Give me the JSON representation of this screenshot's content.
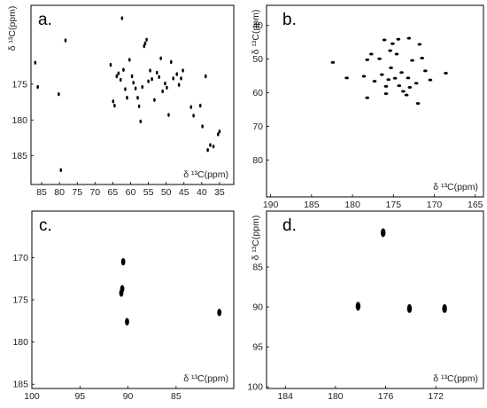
{
  "panels": [
    {
      "id": "a",
      "label": "a.",
      "x_ticks": [
        "85",
        "80",
        "75",
        "70",
        "65",
        "60",
        "55",
        "50",
        "45",
        "40",
        "35"
      ],
      "y_ticks": [
        "175",
        "180",
        "185"
      ],
      "x_axis_label": "δ ¹³C(ppm)",
      "y_axis_label": "δ ¹³C(ppm)",
      "x_range": [
        88,
        31
      ],
      "y_range": [
        164,
        189
      ],
      "peaks": [
        [
          86.8,
          172.0
        ],
        [
          86.1,
          175.4
        ],
        [
          80.2,
          176.4
        ],
        [
          79.6,
          187.0
        ],
        [
          78.3,
          168.9
        ],
        [
          65.6,
          172.3
        ],
        [
          64.9,
          177.4
        ],
        [
          64.5,
          178.0
        ],
        [
          63.9,
          173.9
        ],
        [
          63.4,
          173.5
        ],
        [
          62.8,
          174.4
        ],
        [
          62.4,
          165.8
        ],
        [
          62.0,
          173.0
        ],
        [
          61.5,
          175.7
        ],
        [
          61.0,
          176.9
        ],
        [
          60.3,
          171.6
        ],
        [
          59.6,
          173.9
        ],
        [
          59.2,
          174.8
        ],
        [
          58.6,
          175.6
        ],
        [
          58.0,
          176.9
        ],
        [
          57.6,
          178.1
        ],
        [
          57.2,
          180.2
        ],
        [
          56.7,
          175.4
        ],
        [
          56.2,
          169.7
        ],
        [
          55.9,
          169.3
        ],
        [
          55.5,
          168.8
        ],
        [
          55.0,
          174.6
        ],
        [
          54.5,
          173.1
        ],
        [
          54.0,
          174.3
        ],
        [
          53.3,
          177.2
        ],
        [
          52.6,
          173.4
        ],
        [
          52.0,
          174.0
        ],
        [
          51.5,
          171.4
        ],
        [
          51.0,
          176.0
        ],
        [
          50.3,
          174.9
        ],
        [
          49.8,
          175.5
        ],
        [
          49.3,
          179.3
        ],
        [
          48.6,
          171.9
        ],
        [
          48.0,
          174.2
        ],
        [
          47.0,
          173.6
        ],
        [
          46.4,
          175.1
        ],
        [
          45.8,
          174.2
        ],
        [
          45.3,
          173.1
        ],
        [
          43.0,
          178.2
        ],
        [
          42.3,
          179.4
        ],
        [
          40.4,
          178.0
        ],
        [
          39.8,
          180.9
        ],
        [
          38.9,
          173.9
        ],
        [
          38.3,
          184.2
        ],
        [
          37.6,
          183.5
        ],
        [
          36.7,
          183.7
        ],
        [
          35.4,
          182.0
        ],
        [
          35.0,
          181.6
        ]
      ]
    },
    {
      "id": "b",
      "label": "b.",
      "x_ticks": [
        "190",
        "185",
        "180",
        "175",
        "170",
        "165"
      ],
      "y_ticks": [
        "40",
        "50",
        "60",
        "70",
        "80"
      ],
      "x_axis_label": "δ ¹³C(ppm)",
      "y_axis_label": "δ ¹³C(ppm)",
      "x_range": [
        190.5,
        164
      ],
      "y_range": [
        34,
        91
      ],
      "peaks": [
        [
          182.4,
          51.0
        ],
        [
          180.7,
          55.6
        ],
        [
          178.6,
          55.1
        ],
        [
          178.2,
          50.2
        ],
        [
          178.2,
          61.5
        ],
        [
          177.7,
          48.5
        ],
        [
          177.3,
          56.6
        ],
        [
          176.7,
          49.9
        ],
        [
          176.4,
          54.6
        ],
        [
          176.1,
          44.3
        ],
        [
          175.9,
          58.1
        ],
        [
          175.9,
          60.3
        ],
        [
          175.6,
          56.1
        ],
        [
          175.4,
          47.5
        ],
        [
          175.3,
          52.6
        ],
        [
          175.1,
          45.4
        ],
        [
          174.8,
          55.7
        ],
        [
          174.6,
          48.5
        ],
        [
          174.4,
          44.1
        ],
        [
          174.3,
          57.9
        ],
        [
          174.0,
          54.0
        ],
        [
          173.8,
          59.6
        ],
        [
          173.4,
          60.7
        ],
        [
          173.2,
          55.6
        ],
        [
          173.1,
          43.8
        ],
        [
          173.0,
          58.4
        ],
        [
          172.7,
          50.4
        ],
        [
          172.2,
          57.2
        ],
        [
          172.0,
          63.2
        ],
        [
          171.8,
          45.6
        ],
        [
          171.5,
          49.7
        ],
        [
          171.1,
          53.5
        ],
        [
          170.5,
          56.2
        ],
        [
          168.6,
          54.2
        ]
      ]
    },
    {
      "id": "c",
      "label": "c.",
      "x_ticks": [
        "100",
        "95",
        "90",
        "85"
      ],
      "y_ticks": [
        "170",
        "175",
        "180",
        "185"
      ],
      "x_axis_label": "δ ¹³C(ppm)",
      "y_axis_label": "",
      "x_range": [
        100,
        79
      ],
      "y_range": [
        164.5,
        185.5
      ],
      "peaks": [
        [
          90.5,
          170.5
        ],
        [
          90.6,
          173.7
        ],
        [
          90.7,
          174.2
        ],
        [
          90.1,
          177.6
        ],
        [
          80.5,
          176.5
        ]
      ]
    },
    {
      "id": "d",
      "label": "d.",
      "x_ticks": [
        "184",
        "180",
        "176",
        "172"
      ],
      "y_ticks": [
        "85",
        "90",
        "95",
        "100"
      ],
      "x_axis_label": "δ ¹³C(ppm)",
      "y_axis_label": "δ ¹³C(ppm)",
      "x_range": [
        185.5,
        168.2
      ],
      "y_range": [
        78,
        100.2
      ],
      "peaks": [
        [
          176.2,
          80.7
        ],
        [
          178.2,
          89.9
        ],
        [
          174.1,
          90.2
        ],
        [
          171.3,
          90.2
        ]
      ]
    }
  ]
}
